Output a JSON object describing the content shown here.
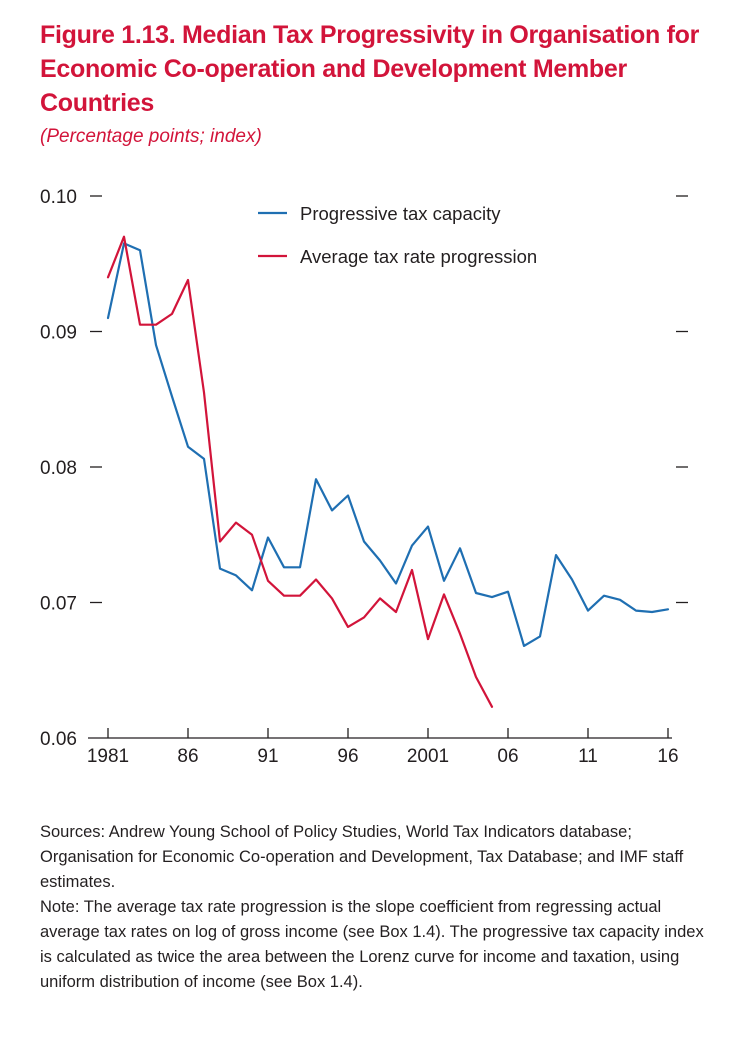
{
  "figure": {
    "title": "Figure 1.13. Median Tax Progressivity in Organisation for Economic Co-operation and Development Member Countries",
    "subtitle": "(Percentage points; index)"
  },
  "notes": {
    "sources": "Sources: Andrew Young School of Policy Studies, World Tax Indicators database; Organisation for Economic Co-operation and Development, Tax Database; and IMF staff estimates.",
    "note": "Note: The average tax rate progression is the slope coefficient from regressing actual average tax rates on log of gross income (see Box 1.4). The progressive tax capacity index is calculated as twice the area between the Lorenz curve for income and taxation, using uniform distribution of income (see Box 1.4)."
  },
  "chart_data": {
    "type": "line",
    "xlim": [
      1981,
      2016
    ],
    "ylim": [
      0.06,
      0.1
    ],
    "x_ticks": [
      1981,
      1986,
      1991,
      1996,
      2001,
      2006,
      2011,
      2016
    ],
    "x_tick_labels": [
      "1981",
      "86",
      "91",
      "96",
      "2001",
      "06",
      "11",
      "16"
    ],
    "y_ticks": [
      0.06,
      0.07,
      0.08,
      0.09,
      0.1
    ],
    "y_tick_labels": [
      "0.06",
      "0.07",
      "0.08",
      "0.09",
      "0.10"
    ],
    "legend_position": "top-center",
    "grid": false,
    "series": [
      {
        "name": "Progressive tax capacity",
        "color": "#1f6fb2",
        "x": [
          1981,
          1982,
          1983,
          1984,
          1985,
          1986,
          1987,
          1988,
          1989,
          1990,
          1991,
          1992,
          1993,
          1994,
          1995,
          1996,
          1997,
          1998,
          1999,
          2000,
          2001,
          2002,
          2003,
          2004,
          2005,
          2006,
          2007,
          2008,
          2009,
          2010,
          2011,
          2012,
          2013,
          2014,
          2015,
          2016
        ],
        "y": [
          0.091,
          0.0965,
          0.096,
          0.089,
          0.0852,
          0.0815,
          0.0806,
          0.0725,
          0.072,
          0.0709,
          0.0748,
          0.0726,
          0.0726,
          0.0791,
          0.0768,
          0.0779,
          0.0745,
          0.0731,
          0.0714,
          0.0742,
          0.0756,
          0.0716,
          0.074,
          0.0707,
          0.0704,
          0.0708,
          0.0668,
          0.0675,
          0.0735,
          0.0717,
          0.0694,
          0.0705,
          0.0702,
          0.0694,
          0.0693,
          0.0695
        ]
      },
      {
        "name": "Average tax rate progression",
        "color": "#d2143a",
        "x": [
          1981,
          1982,
          1983,
          1984,
          1985,
          1986,
          1987,
          1988,
          1989,
          1990,
          1991,
          1992,
          1993,
          1994,
          1995,
          1996,
          1997,
          1998,
          1999,
          2000,
          2001,
          2002,
          2003,
          2004,
          2005
        ],
        "y": [
          0.094,
          0.097,
          0.0905,
          0.0905,
          0.0913,
          0.0938,
          0.0855,
          0.0745,
          0.0759,
          0.075,
          0.0716,
          0.0705,
          0.0705,
          0.0717,
          0.0703,
          0.0682,
          0.0689,
          0.0703,
          0.0693,
          0.0724,
          0.0673,
          0.0706,
          0.0677,
          0.0645,
          0.0623
        ]
      }
    ]
  }
}
